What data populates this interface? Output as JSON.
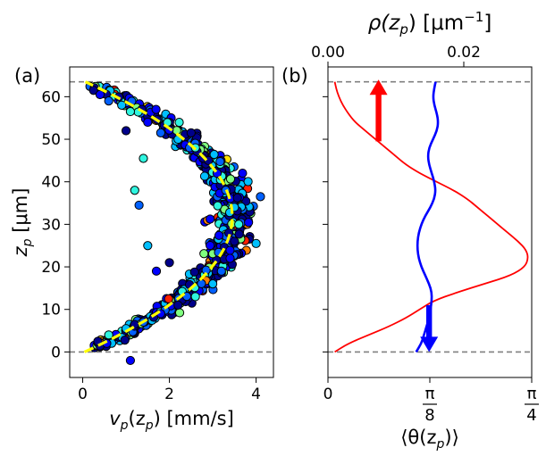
{
  "chart_data": [
    {
      "type": "scatter",
      "panel_label": "(a)",
      "xlabel_main": "v",
      "xlabel_sub": "p",
      "xlabel_open": "(z",
      "xlabel_sub2": "p",
      "xlabel_close": ") [mm/s]",
      "ylabel_main": "z",
      "ylabel_sub": "p",
      "ylabel_unit": " [μm]",
      "xlim": [
        -0.3,
        4.4
      ],
      "ylim": [
        -6,
        67
      ],
      "xticks": [
        0,
        2,
        4
      ],
      "xtick_labels": [
        "0",
        "2",
        "4"
      ],
      "yticks": [
        0,
        10,
        20,
        30,
        40,
        50,
        60
      ],
      "ytick_labels": [
        "0",
        "10",
        "20",
        "30",
        "40",
        "50",
        "60"
      ],
      "hlines": [
        0,
        63.5
      ],
      "fit_curve": {
        "description": "dashed parabola",
        "x_at_walls": 0.05,
        "x_max": 3.45,
        "z_center": 31.8,
        "z_walls": [
          0,
          63.5
        ],
        "color": "#ffff00"
      },
      "point_colors": [
        "#00008b",
        "#0000ff",
        "#0060ff",
        "#00bfff",
        "#2ff5e0",
        "#80ff80",
        "#ffe000",
        "#ff8000",
        "#ff2000"
      ],
      "representative_points": [
        [
          0.25,
          61.5
        ],
        [
          0.4,
          60.5
        ],
        [
          0.6,
          59.0
        ],
        [
          0.9,
          58.0
        ],
        [
          1.1,
          56.5
        ],
        [
          1.0,
          52.0
        ],
        [
          1.5,
          54.0
        ],
        [
          1.8,
          51.5
        ],
        [
          2.2,
          50.0
        ],
        [
          2.6,
          48.0
        ],
        [
          2.9,
          45.0
        ],
        [
          3.1,
          42.0
        ],
        [
          3.3,
          38.0
        ],
        [
          3.5,
          34.0
        ],
        [
          3.6,
          30.0
        ],
        [
          3.5,
          26.0
        ],
        [
          3.4,
          22.0
        ],
        [
          3.2,
          19.0
        ],
        [
          3.0,
          16.0
        ],
        [
          2.6,
          13.0
        ],
        [
          2.2,
          11.0
        ],
        [
          1.8,
          9.0
        ],
        [
          1.4,
          7.0
        ],
        [
          1.0,
          5.5
        ],
        [
          0.6,
          4.0
        ],
        [
          0.35,
          2.5
        ],
        [
          1.1,
          -2.0
        ],
        [
          1.3,
          34.5
        ],
        [
          1.5,
          25.0
        ],
        [
          1.2,
          38.0
        ],
        [
          2.0,
          21.0
        ],
        [
          1.7,
          19.0
        ],
        [
          4.1,
          36.5
        ],
        [
          4.0,
          25.5
        ],
        [
          1.4,
          45.5
        ],
        [
          2.5,
          51.5
        ]
      ]
    },
    {
      "type": "line",
      "panel_label": "(b)",
      "xlabel_bottom": "⟨θ(z",
      "xlabel_bottom_sub": "p",
      "xlabel_bottom_close": ")⟩",
      "xlabel_top_main": "ρ(z",
      "xlabel_top_sub": "p",
      "xlabel_top_close": ") [μm",
      "xlabel_top_exp": "−1",
      "xlabel_top_end": "]",
      "bottom_xlim": [
        0,
        0.7854
      ],
      "bottom_ticks": [
        0,
        0.3927,
        0.7854
      ],
      "bottom_tick_labels": [
        {
          "whole": "0"
        },
        {
          "num": "π",
          "den": "8"
        },
        {
          "num": "π",
          "den": "4"
        }
      ],
      "top_xlim": [
        0,
        0.03
      ],
      "top_ticks": [
        0.0,
        0.02
      ],
      "top_tick_labels": [
        "0.00",
        "0.02"
      ],
      "ylim": [
        -6,
        67
      ],
      "hlines": [
        0,
        63.5
      ],
      "series": [
        {
          "name": "density ρ(z_p)",
          "axis": "top",
          "color": "#ff0000",
          "z": [
            0,
            2,
            4,
            6,
            8,
            10,
            12,
            14,
            16,
            18,
            20,
            22,
            24,
            26,
            28,
            30,
            32,
            34,
            36,
            38,
            40,
            42,
            44,
            46,
            48,
            50,
            52,
            54,
            56,
            58,
            60,
            62,
            63.5
          ],
          "rho": [
            0.001,
            0.003,
            0.006,
            0.009,
            0.0115,
            0.0135,
            0.0155,
            0.019,
            0.023,
            0.027,
            0.029,
            0.0295,
            0.0292,
            0.028,
            0.0265,
            0.025,
            0.0235,
            0.022,
            0.0205,
            0.0185,
            0.016,
            0.0135,
            0.0115,
            0.01,
            0.0085,
            0.007,
            0.0055,
            0.004,
            0.003,
            0.0022,
            0.0016,
            0.0012,
            0.001
          ]
        },
        {
          "name": "mean orientation ⟨θ(z_p)⟩",
          "axis": "bottom",
          "color": "#0000ff",
          "z": [
            0,
            2,
            4,
            6,
            8,
            10,
            12,
            14,
            16,
            18,
            20,
            22,
            24,
            26,
            28,
            30,
            32,
            34,
            36,
            38,
            40,
            42,
            44,
            46,
            48,
            50,
            52,
            54,
            56,
            58,
            60,
            62,
            63.5
          ],
          "theta": [
            0.34,
            0.36,
            0.37,
            0.38,
            0.39,
            0.395,
            0.4,
            0.4,
            0.39,
            0.375,
            0.36,
            0.35,
            0.345,
            0.345,
            0.35,
            0.36,
            0.375,
            0.395,
            0.41,
            0.415,
            0.41,
            0.4,
            0.39,
            0.385,
            0.39,
            0.405,
            0.42,
            0.425,
            0.42,
            0.41,
            0.405,
            0.41,
            0.415
          ]
        }
      ],
      "arrows": [
        {
          "name": "up-arrow",
          "color": "#ff0000",
          "theta_x": 0.195,
          "z_from": 49.5,
          "z_to": 64.0
        },
        {
          "name": "down-arrow",
          "color": "#0000ff",
          "theta_x": 0.39,
          "z_from": 11.0,
          "z_to": 0.0
        }
      ]
    }
  ]
}
